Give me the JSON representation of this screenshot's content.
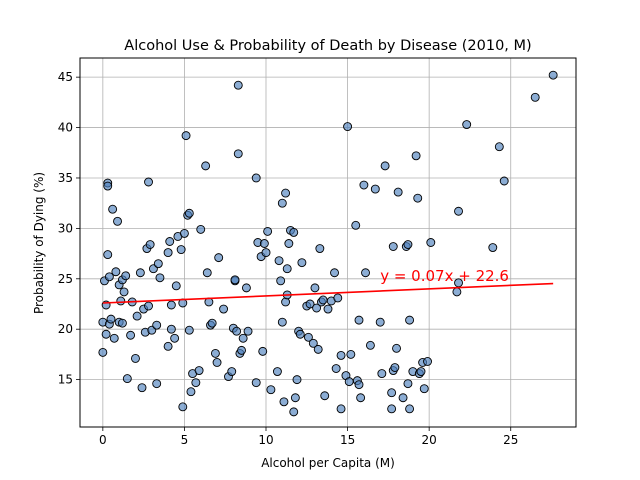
{
  "chart_data": {
    "type": "scatter",
    "title": "Alcohol Use & Probability of Death by Disease (2010, M)",
    "xlabel": "Alcohol per Capita (M)",
    "ylabel": "Probability of Dying (%)",
    "xlim": [
      -1.4,
      29.0
    ],
    "ylim": [
      10.3,
      46.9
    ],
    "xticks": [
      0,
      5,
      10,
      15,
      20,
      25
    ],
    "yticks": [
      15,
      20,
      25,
      30,
      35,
      40,
      45
    ],
    "grid": true,
    "marker_color": "#4f81bd",
    "line_color": "#ff0000",
    "annotation": {
      "text": "y = 0.07x + 22.6",
      "x": 17.0,
      "y": 24.8
    },
    "regression": {
      "slope": 0.07,
      "intercept": 22.6,
      "x_range": [
        0.0,
        27.6
      ]
    },
    "points": [
      [
        0.0,
        20.7
      ],
      [
        0.0,
        17.7
      ],
      [
        0.1,
        24.8
      ],
      [
        0.2,
        22.4
      ],
      [
        0.2,
        19.5
      ],
      [
        0.3,
        34.5
      ],
      [
        0.3,
        34.2
      ],
      [
        0.3,
        27.4
      ],
      [
        0.4,
        20.5
      ],
      [
        0.4,
        25.2
      ],
      [
        0.5,
        21.0
      ],
      [
        0.6,
        31.9
      ],
      [
        0.7,
        19.1
      ],
      [
        0.8,
        25.7
      ],
      [
        0.9,
        30.7
      ],
      [
        1.0,
        20.7
      ],
      [
        1.0,
        24.4
      ],
      [
        1.1,
        22.8
      ],
      [
        1.2,
        20.6
      ],
      [
        1.2,
        24.9
      ],
      [
        1.3,
        23.7
      ],
      [
        1.4,
        25.3
      ],
      [
        1.5,
        15.1
      ],
      [
        1.7,
        19.4
      ],
      [
        1.8,
        22.7
      ],
      [
        2.0,
        17.1
      ],
      [
        2.1,
        21.3
      ],
      [
        2.3,
        25.6
      ],
      [
        2.4,
        14.2
      ],
      [
        2.5,
        22.0
      ],
      [
        2.6,
        19.7
      ],
      [
        2.7,
        28.0
      ],
      [
        2.8,
        22.3
      ],
      [
        2.8,
        34.6
      ],
      [
        2.9,
        28.4
      ],
      [
        3.0,
        19.9
      ],
      [
        3.1,
        26.0
      ],
      [
        3.3,
        14.6
      ],
      [
        3.3,
        20.4
      ],
      [
        3.4,
        26.5
      ],
      [
        3.5,
        25.1
      ],
      [
        4.0,
        18.3
      ],
      [
        4.0,
        27.6
      ],
      [
        4.1,
        28.7
      ],
      [
        4.2,
        20.0
      ],
      [
        4.2,
        22.4
      ],
      [
        4.4,
        19.1
      ],
      [
        4.5,
        24.3
      ],
      [
        4.6,
        29.2
      ],
      [
        4.8,
        27.9
      ],
      [
        4.9,
        12.3
      ],
      [
        4.9,
        22.6
      ],
      [
        5.0,
        29.5
      ],
      [
        5.1,
        39.2
      ],
      [
        5.2,
        31.3
      ],
      [
        5.3,
        31.5
      ],
      [
        5.3,
        19.9
      ],
      [
        5.4,
        13.8
      ],
      [
        5.5,
        15.6
      ],
      [
        5.7,
        14.7
      ],
      [
        5.9,
        15.9
      ],
      [
        6.0,
        29.9
      ],
      [
        6.3,
        36.2
      ],
      [
        6.4,
        25.6
      ],
      [
        6.5,
        22.7
      ],
      [
        6.6,
        20.4
      ],
      [
        6.7,
        20.6
      ],
      [
        6.9,
        17.6
      ],
      [
        7.0,
        16.7
      ],
      [
        7.1,
        27.1
      ],
      [
        7.4,
        22.0
      ],
      [
        7.7,
        15.3
      ],
      [
        7.9,
        15.8
      ],
      [
        8.0,
        20.1
      ],
      [
        8.1,
        24.8
      ],
      [
        8.1,
        24.9
      ],
      [
        8.2,
        19.8
      ],
      [
        8.3,
        44.2
      ],
      [
        8.3,
        37.4
      ],
      [
        8.4,
        17.6
      ],
      [
        8.5,
        17.9
      ],
      [
        8.6,
        19.1
      ],
      [
        8.8,
        24.1
      ],
      [
        8.9,
        19.8
      ],
      [
        9.4,
        35.0
      ],
      [
        9.4,
        14.7
      ],
      [
        9.5,
        28.6
      ],
      [
        9.7,
        27.2
      ],
      [
        9.8,
        17.8
      ],
      [
        9.9,
        28.5
      ],
      [
        10.0,
        27.6
      ],
      [
        10.1,
        29.7
      ],
      [
        10.3,
        14.0
      ],
      [
        10.7,
        15.8
      ],
      [
        10.8,
        26.8
      ],
      [
        10.9,
        24.8
      ],
      [
        11.0,
        32.5
      ],
      [
        11.0,
        20.7
      ],
      [
        11.1,
        12.8
      ],
      [
        11.2,
        33.5
      ],
      [
        11.2,
        22.7
      ],
      [
        11.3,
        23.4
      ],
      [
        11.3,
        26.0
      ],
      [
        11.4,
        28.5
      ],
      [
        11.5,
        29.8
      ],
      [
        11.7,
        29.6
      ],
      [
        11.7,
        11.8
      ],
      [
        11.8,
        13.2
      ],
      [
        11.9,
        15.0
      ],
      [
        12.0,
        19.8
      ],
      [
        12.1,
        19.5
      ],
      [
        12.2,
        26.6
      ],
      [
        12.5,
        22.3
      ],
      [
        12.6,
        19.2
      ],
      [
        12.7,
        22.5
      ],
      [
        12.9,
        18.6
      ],
      [
        13.0,
        24.1
      ],
      [
        13.1,
        22.1
      ],
      [
        13.2,
        18.0
      ],
      [
        13.3,
        28.0
      ],
      [
        13.4,
        22.7
      ],
      [
        13.5,
        22.9
      ],
      [
        13.6,
        13.4
      ],
      [
        13.8,
        22.0
      ],
      [
        14.0,
        22.8
      ],
      [
        14.2,
        25.6
      ],
      [
        14.3,
        16.1
      ],
      [
        14.4,
        23.1
      ],
      [
        14.6,
        12.1
      ],
      [
        14.6,
        17.4
      ],
      [
        14.9,
        15.4
      ],
      [
        15.0,
        40.1
      ],
      [
        15.1,
        14.8
      ],
      [
        15.2,
        17.5
      ],
      [
        15.5,
        30.3
      ],
      [
        15.6,
        14.9
      ],
      [
        15.7,
        20.9
      ],
      [
        15.7,
        14.5
      ],
      [
        15.8,
        13.2
      ],
      [
        16.0,
        34.3
      ],
      [
        16.1,
        25.6
      ],
      [
        16.4,
        18.4
      ],
      [
        16.7,
        33.9
      ],
      [
        17.0,
        20.7
      ],
      [
        17.1,
        15.6
      ],
      [
        17.3,
        36.2
      ],
      [
        17.7,
        13.7
      ],
      [
        17.7,
        12.1
      ],
      [
        17.8,
        15.9
      ],
      [
        17.8,
        28.2
      ],
      [
        17.9,
        16.2
      ],
      [
        18.0,
        18.1
      ],
      [
        18.1,
        33.6
      ],
      [
        18.4,
        13.2
      ],
      [
        18.6,
        28.2
      ],
      [
        18.7,
        28.4
      ],
      [
        18.7,
        14.6
      ],
      [
        18.8,
        12.1
      ],
      [
        18.8,
        20.9
      ],
      [
        19.0,
        15.8
      ],
      [
        19.2,
        37.2
      ],
      [
        19.3,
        33.0
      ],
      [
        19.4,
        15.6
      ],
      [
        19.5,
        15.8
      ],
      [
        19.6,
        16.7
      ],
      [
        19.7,
        14.1
      ],
      [
        19.9,
        16.8
      ],
      [
        20.1,
        28.6
      ],
      [
        21.7,
        23.7
      ],
      [
        21.8,
        31.7
      ],
      [
        21.8,
        24.6
      ],
      [
        22.3,
        40.3
      ],
      [
        23.9,
        28.1
      ],
      [
        24.3,
        38.1
      ],
      [
        24.6,
        34.7
      ],
      [
        26.5,
        43.0
      ],
      [
        27.6,
        45.2
      ]
    ]
  }
}
